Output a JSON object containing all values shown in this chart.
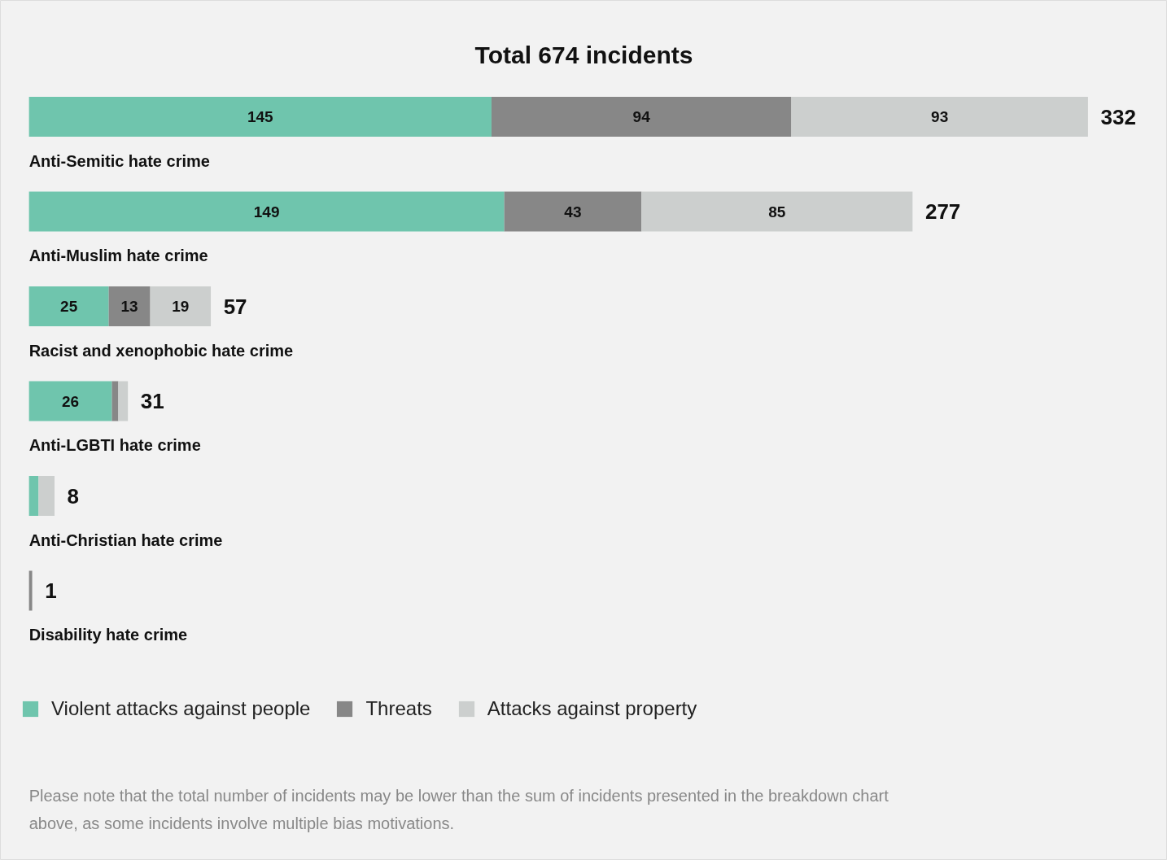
{
  "chart_data": {
    "type": "bar",
    "orientation": "horizontal",
    "stacked": true,
    "title": "Total 674 incidents",
    "categories": [
      "Anti-Semitic hate crime",
      "Anti-Muslim hate crime",
      "Racist and xenophobic hate crime",
      "Anti-LGBTI hate crime",
      "Anti-Christian hate crime",
      "Disability hate crime"
    ],
    "series": [
      {
        "name": "Violent attacks against people",
        "color": "#6fc5ad",
        "values": [
          145,
          149,
          25,
          26,
          3,
          0
        ],
        "value_labels": [
          "145",
          "149",
          "25",
          "26",
          null,
          null
        ]
      },
      {
        "name": "Threats",
        "color": "#878787",
        "values": [
          94,
          43,
          13,
          2,
          0,
          1
        ],
        "value_labels": [
          "94",
          "43",
          "13",
          null,
          null,
          null
        ]
      },
      {
        "name": "Attacks against property",
        "color": "#cccfce",
        "values": [
          93,
          85,
          19,
          3,
          5,
          0
        ],
        "value_labels": [
          "93",
          "85",
          "19",
          null,
          null,
          null
        ]
      }
    ],
    "totals": [
      "332",
      "277",
      "57",
      "31",
      "8",
      "1"
    ],
    "legend": "bottom",
    "grid": false,
    "annotations": [
      "Please note that the total number of incidents may be lower than the sum of incidents presented in the breakdown chart above, as some incidents involve multiple bias motivations."
    ]
  }
}
